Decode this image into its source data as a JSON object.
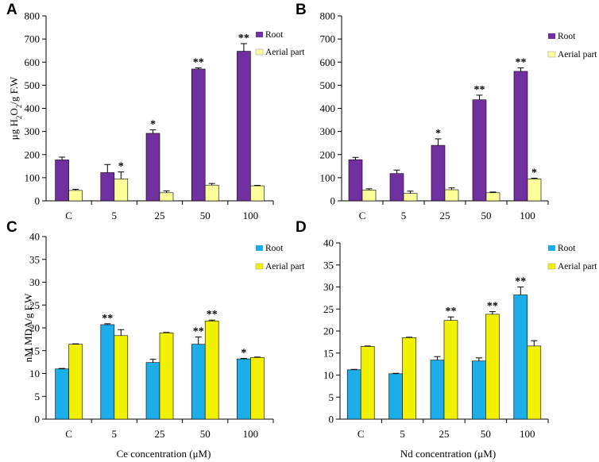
{
  "chart_data": [
    {
      "panel": "A",
      "type": "bar",
      "categories": [
        "C",
        "5",
        "25",
        "50",
        "100"
      ],
      "series": [
        {
          "name": "Root",
          "color": "#7030A0",
          "values": [
            177,
            122,
            292,
            570,
            647
          ],
          "errors": [
            12,
            35,
            15,
            5,
            33
          ],
          "sig": [
            "",
            "",
            "*",
            "**",
            "**"
          ]
        },
        {
          "name": "Aerial part",
          "color": "#FFFF99",
          "values": [
            45,
            95,
            35,
            68,
            65
          ],
          "errors": [
            5,
            30,
            8,
            7,
            2
          ],
          "sig": [
            "",
            "*",
            "",
            "",
            ""
          ]
        }
      ],
      "ylim": [
        0,
        800
      ],
      "yticks": [
        "0",
        "100",
        "200",
        "300",
        "400",
        "500",
        "600",
        "700",
        "800"
      ],
      "ylabel": "μg H2O2/g F.W",
      "ylabel_parts": [
        "μg H",
        "2",
        "O",
        "2",
        "/g F.W"
      ],
      "xlabel": ""
    },
    {
      "panel": "B",
      "type": "bar",
      "categories": [
        "C",
        "5",
        "25",
        "50",
        "100"
      ],
      "series": [
        {
          "name": "Root",
          "color": "#7030A0",
          "values": [
            178,
            118,
            240,
            437,
            560
          ],
          "errors": [
            10,
            15,
            28,
            20,
            15
          ],
          "sig": [
            "",
            "",
            "*",
            "**",
            "**"
          ]
        },
        {
          "name": "Aerial part",
          "color": "#FFFF99",
          "values": [
            47,
            32,
            48,
            35,
            95
          ],
          "errors": [
            5,
            10,
            8,
            3,
            3
          ],
          "sig": [
            "",
            "",
            "",
            "",
            "*"
          ]
        }
      ],
      "ylim": [
        0,
        800
      ],
      "yticks": [
        "0",
        "100",
        "200",
        "300",
        "400",
        "500",
        "600",
        "700",
        "800"
      ],
      "ylabel": "",
      "xlabel": ""
    },
    {
      "panel": "C",
      "type": "bar",
      "categories": [
        "C",
        "5",
        "25",
        "50",
        "100"
      ],
      "series": [
        {
          "name": "Root",
          "color": "#1CAEE8",
          "values": [
            11.0,
            20.7,
            12.4,
            16.4,
            13.2
          ],
          "errors": [
            0.1,
            0.2,
            0.7,
            1.6,
            0.1
          ],
          "sig": [
            "",
            "**",
            "",
            "**",
            "*"
          ]
        },
        {
          "name": "Aerial part",
          "color": "#F2F200",
          "values": [
            16.4,
            18.3,
            18.9,
            21.5,
            13.5
          ],
          "errors": [
            0.1,
            1.3,
            0.1,
            0.2,
            0.1
          ],
          "sig": [
            "",
            "",
            "",
            "**",
            ""
          ]
        }
      ],
      "ylim": [
        0,
        40
      ],
      "yticks": [
        "0",
        "5",
        "10",
        "15",
        "20",
        "25",
        "30",
        "35",
        "40"
      ],
      "ylabel": "nM MDA/g F.W",
      "xlabel": "Ce concentration (μM)"
    },
    {
      "panel": "D",
      "type": "bar",
      "categories": [
        "C",
        "5",
        "25",
        "50",
        "100"
      ],
      "series": [
        {
          "name": "Root",
          "color": "#1CAEE8",
          "values": [
            11.2,
            10.3,
            13.4,
            13.2,
            28.2
          ],
          "errors": [
            0.1,
            0.1,
            0.8,
            0.7,
            1.8
          ],
          "sig": [
            "",
            "",
            "",
            "",
            "**"
          ]
        },
        {
          "name": "Aerial part",
          "color": "#F2F200",
          "values": [
            16.5,
            18.5,
            22.4,
            23.8,
            16.6
          ],
          "errors": [
            0.1,
            0.1,
            0.8,
            0.6,
            1.2
          ],
          "sig": [
            "",
            "",
            "**",
            "**",
            ""
          ]
        }
      ],
      "ylim": [
        0,
        40
      ],
      "yticks": [
        "0",
        "5",
        "10",
        "15",
        "20",
        "25",
        "30",
        "35",
        "40"
      ],
      "ylabel": "",
      "xlabel": "Nd concentration (μM)"
    }
  ]
}
